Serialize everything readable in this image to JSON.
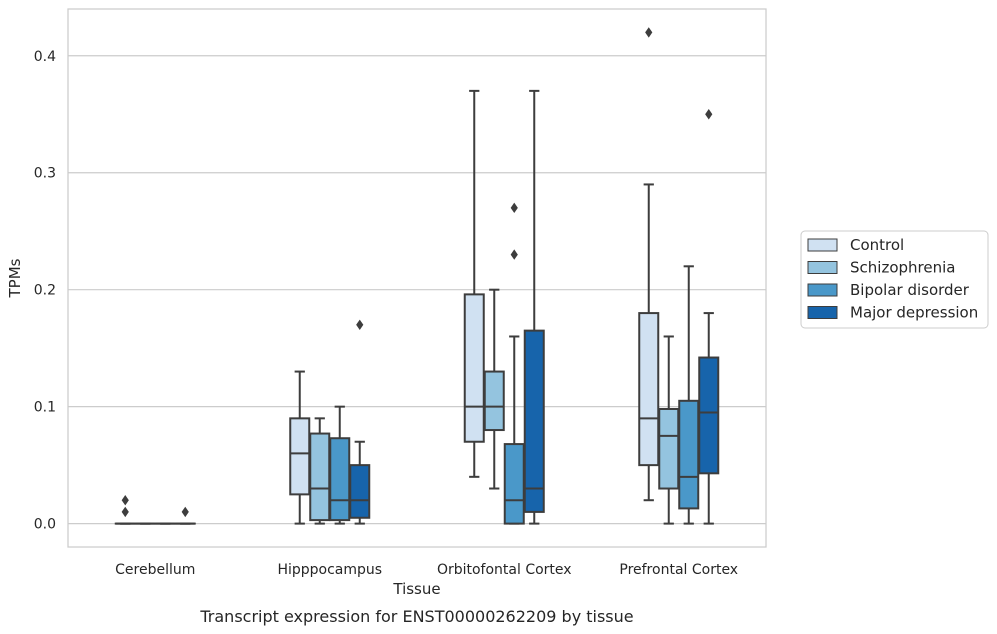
{
  "caption": "Transcript expression for ENST00000262209 by tissue",
  "chart_data": {
    "type": "box",
    "xlabel": "Tissue",
    "ylabel": "TPMs",
    "ylim": [
      -0.02,
      0.44
    ],
    "yticks": [
      0.0,
      0.1,
      0.2,
      0.3,
      0.4
    ],
    "ytick_labels": [
      "0.0",
      "0.1",
      "0.2",
      "0.3",
      "0.4"
    ],
    "grid": "horizontal",
    "legend_position": "right, outside plot",
    "categories": [
      "Cerebellum",
      "Hipppocampus",
      "Orbitofontal Cortex",
      "Prefrontal Cortex"
    ],
    "series": [
      {
        "name": "Control",
        "color": "#d0e1f2",
        "boxes": [
          {
            "q1": 0.0,
            "median": 0.0,
            "q3": 0.0,
            "whisker_low": 0.0,
            "whisker_high": 0.0,
            "outliers": [
              0.01,
              0.02
            ]
          },
          {
            "q1": 0.025,
            "median": 0.06,
            "q3": 0.09,
            "whisker_low": 0.0,
            "whisker_high": 0.13,
            "outliers": []
          },
          {
            "q1": 0.07,
            "median": 0.1,
            "q3": 0.196,
            "whisker_low": 0.04,
            "whisker_high": 0.37,
            "outliers": []
          },
          {
            "q1": 0.05,
            "median": 0.09,
            "q3": 0.18,
            "whisker_low": 0.02,
            "whisker_high": 0.29,
            "outliers": [
              0.42
            ]
          }
        ]
      },
      {
        "name": "Schizophrenia",
        "color": "#94c4df",
        "boxes": [
          {
            "q1": 0.0,
            "median": 0.0,
            "q3": 0.0,
            "whisker_low": 0.0,
            "whisker_high": 0.0,
            "outliers": []
          },
          {
            "q1": 0.003,
            "median": 0.03,
            "q3": 0.077,
            "whisker_low": 0.0,
            "whisker_high": 0.09,
            "outliers": []
          },
          {
            "q1": 0.08,
            "median": 0.1,
            "q3": 0.13,
            "whisker_low": 0.03,
            "whisker_high": 0.2,
            "outliers": []
          },
          {
            "q1": 0.03,
            "median": 0.075,
            "q3": 0.098,
            "whisker_low": 0.0,
            "whisker_high": 0.16,
            "outliers": []
          }
        ]
      },
      {
        "name": "Bipolar disorder",
        "color": "#4a98c9",
        "boxes": [
          {
            "q1": 0.0,
            "median": 0.0,
            "q3": 0.0,
            "whisker_low": 0.0,
            "whisker_high": 0.0,
            "outliers": []
          },
          {
            "q1": 0.003,
            "median": 0.02,
            "q3": 0.073,
            "whisker_low": 0.0,
            "whisker_high": 0.1,
            "outliers": []
          },
          {
            "q1": 0.0,
            "median": 0.02,
            "q3": 0.068,
            "whisker_low": 0.0,
            "whisker_high": 0.16,
            "outliers": [
              0.23,
              0.27
            ]
          },
          {
            "q1": 0.013,
            "median": 0.04,
            "q3": 0.105,
            "whisker_low": 0.0,
            "whisker_high": 0.22,
            "outliers": []
          }
        ]
      },
      {
        "name": "Major depression",
        "color": "#1764ab",
        "boxes": [
          {
            "q1": 0.0,
            "median": 0.0,
            "q3": 0.0,
            "whisker_low": 0.0,
            "whisker_high": 0.0,
            "outliers": [
              0.01
            ]
          },
          {
            "q1": 0.005,
            "median": 0.02,
            "q3": 0.05,
            "whisker_low": 0.0,
            "whisker_high": 0.07,
            "outliers": [
              0.17
            ]
          },
          {
            "q1": 0.01,
            "median": 0.03,
            "q3": 0.165,
            "whisker_low": 0.0,
            "whisker_high": 0.37,
            "outliers": []
          },
          {
            "q1": 0.043,
            "median": 0.095,
            "q3": 0.142,
            "whisker_low": 0.0,
            "whisker_high": 0.18,
            "outliers": [
              0.35
            ]
          }
        ]
      }
    ]
  }
}
